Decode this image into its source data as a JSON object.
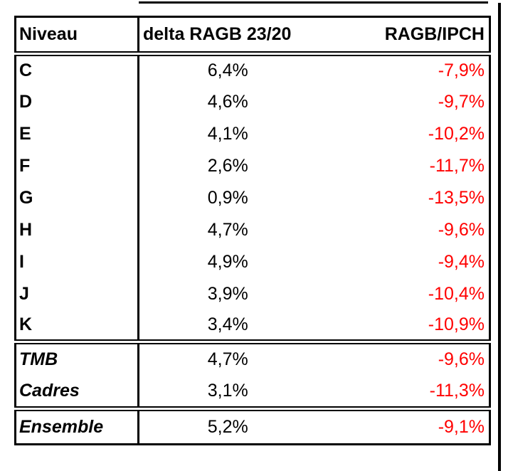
{
  "table": {
    "columns": [
      {
        "label": "Niveau"
      },
      {
        "label": "delta RAGB 23/20"
      },
      {
        "label": "RAGB/IPCH"
      }
    ],
    "rows": [
      {
        "level": "C",
        "delta": "6,4%",
        "ratio": "-7,9%",
        "ratio_bold": false
      },
      {
        "level": "D",
        "delta": "4,6%",
        "ratio": "-9,7%",
        "ratio_bold": false
      },
      {
        "level": "E",
        "delta": "4,1%",
        "ratio": "-10,2%",
        "ratio_bold": true
      },
      {
        "level": "F",
        "delta": "2,6%",
        "ratio": "-11,7%",
        "ratio_bold": true
      },
      {
        "level": "G",
        "delta": "0,9%",
        "ratio": "-13,5%",
        "ratio_bold": true
      },
      {
        "level": "H",
        "delta": "4,7%",
        "ratio": "-9,6%",
        "ratio_bold": false
      },
      {
        "level": "I",
        "delta": "4,9%",
        "ratio": "-9,4%",
        "ratio_bold": false
      },
      {
        "level": "J",
        "delta": "3,9%",
        "ratio": "-10,4%",
        "ratio_bold": true
      },
      {
        "level": "K",
        "delta": "3,4%",
        "ratio": "-10,9%",
        "ratio_bold": true
      }
    ],
    "subtotal_rows": [
      {
        "level": "TMB",
        "delta": "4,7%",
        "ratio": "-9,6%",
        "ratio_bold": false
      },
      {
        "level": "Cadres",
        "delta": "3,1%",
        "ratio": "-11,3%",
        "ratio_bold": true
      }
    ],
    "total_row": {
      "level": "Ensemble",
      "delta": "5,2%",
      "ratio": "-9,1%",
      "ratio_bold": false
    },
    "colors": {
      "negative_value": "#ff0000",
      "text": "#000000",
      "border": "#000000",
      "background": "#ffffff"
    }
  },
  "chart_data": {
    "type": "table",
    "title": "",
    "columns": [
      "Niveau",
      "delta RAGB 23/20",
      "RAGB/IPCH"
    ],
    "rows": [
      [
        "C",
        "6,4%",
        "-7,9%"
      ],
      [
        "D",
        "4,6%",
        "-9,7%"
      ],
      [
        "E",
        "4,1%",
        "-10,2%"
      ],
      [
        "F",
        "2,6%",
        "-11,7%"
      ],
      [
        "G",
        "0,9%",
        "-13,5%"
      ],
      [
        "H",
        "4,7%",
        "-9,6%"
      ],
      [
        "I",
        "4,9%",
        "-9,4%"
      ],
      [
        "J",
        "3,9%",
        "-10,4%"
      ],
      [
        "K",
        "3,4%",
        "-10,9%"
      ],
      [
        "TMB",
        "4,7%",
        "-9,6%"
      ],
      [
        "Cadres",
        "3,1%",
        "-11,3%"
      ],
      [
        "Ensemble",
        "5,2%",
        "-9,1%"
      ]
    ],
    "delta_values_pct": [
      6.4,
      4.6,
      4.1,
      2.6,
      0.9,
      4.7,
      4.9,
      3.9,
      3.4,
      4.7,
      3.1,
      5.2
    ],
    "ratio_values_pct": [
      -7.9,
      -9.7,
      -10.2,
      -11.7,
      -13.5,
      -9.6,
      -9.4,
      -10.4,
      -10.9,
      -9.6,
      -11.3,
      -9.1
    ],
    "notes": "ratio column shown in red; values at or below -10% shown bold; TMB/Cadres/Ensemble row labels bold italic"
  }
}
